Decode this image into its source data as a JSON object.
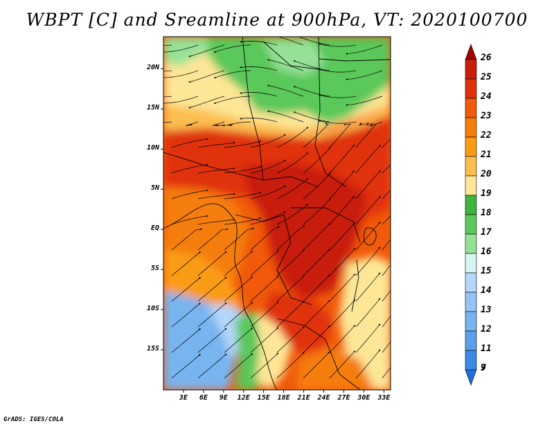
{
  "title": "WBPT [C] and Sreamline at 900hPa, VT: 2020100700",
  "credit": "GrADS: IGES/COLA",
  "map": {
    "lat_ticks": [
      {
        "value": 20,
        "label": "20N"
      },
      {
        "value": 15,
        "label": "15N"
      },
      {
        "value": 10,
        "label": "10N"
      },
      {
        "value": 5,
        "label": "5N"
      },
      {
        "value": 0,
        "label": "EQ"
      },
      {
        "value": -5,
        "label": "5S"
      },
      {
        "value": -10,
        "label": "10S"
      },
      {
        "value": -15,
        "label": "15S"
      }
    ],
    "lon_ticks": [
      {
        "value": 3,
        "label": "3E"
      },
      {
        "value": 6,
        "label": "6E"
      },
      {
        "value": 9,
        "label": "9E"
      },
      {
        "value": 12,
        "label": "12E"
      },
      {
        "value": 15,
        "label": "15E"
      },
      {
        "value": 18,
        "label": "18E"
      },
      {
        "value": 21,
        "label": "21E"
      },
      {
        "value": 24,
        "label": "24E"
      },
      {
        "value": 27,
        "label": "27E"
      },
      {
        "value": 30,
        "label": "30E"
      },
      {
        "value": 33,
        "label": "33E"
      }
    ],
    "lon_range": [
      0,
      34
    ],
    "lat_range": [
      -20,
      24
    ]
  },
  "colorbar": {
    "levels": [
      {
        "label": "26",
        "color": "#a50000"
      },
      {
        "label": "25",
        "color": "#c81e0a"
      },
      {
        "label": "24",
        "color": "#e0320a"
      },
      {
        "label": "23",
        "color": "#f05a0a"
      },
      {
        "label": "22",
        "color": "#f57d0a"
      },
      {
        "label": "21",
        "color": "#fa9b14"
      },
      {
        "label": "20",
        "color": "#fcbe50"
      },
      {
        "label": "19",
        "color": "#fde696"
      },
      {
        "label": "18",
        "color": "#3fb43f"
      },
      {
        "label": "17",
        "color": "#5ac85a"
      },
      {
        "label": "16",
        "color": "#96e196"
      },
      {
        "label": "15",
        "color": "#d7f5f0"
      },
      {
        "label": "14",
        "color": "#b4d7fa"
      },
      {
        "label": "13",
        "color": "#96c3f5"
      },
      {
        "label": "12",
        "color": "#78b4f0"
      },
      {
        "label": "11",
        "color": "#5aa0eb"
      },
      {
        "label": "9",
        "color": "#3c8ce6"
      },
      {
        "label": "7",
        "color": "#1e6edc"
      }
    ]
  },
  "regions": [
    {
      "name": "north-green",
      "color": "#5ac85a"
    },
    {
      "name": "light-green",
      "color": "#96e196"
    },
    {
      "name": "north-yellow",
      "color": "#fde696"
    },
    {
      "name": "sahel-orange",
      "color": "#fcbe50"
    },
    {
      "name": "warm-belt",
      "color": "#e0320a"
    },
    {
      "name": "congo-core",
      "color": "#c81e0a"
    },
    {
      "name": "gulf-orange",
      "color": "#f57d0a"
    },
    {
      "name": "atlantic-light-orange",
      "color": "#fa9b14"
    },
    {
      "name": "atlantic-blue",
      "color": "#78b4f0"
    },
    {
      "name": "atlantic-pale-blue",
      "color": "#b4d7fa"
    },
    {
      "name": "southern-green",
      "color": "#5ac85a"
    },
    {
      "name": "southern-yellow",
      "color": "#fde696"
    },
    {
      "name": "east-yellow",
      "color": "#fde696"
    }
  ]
}
